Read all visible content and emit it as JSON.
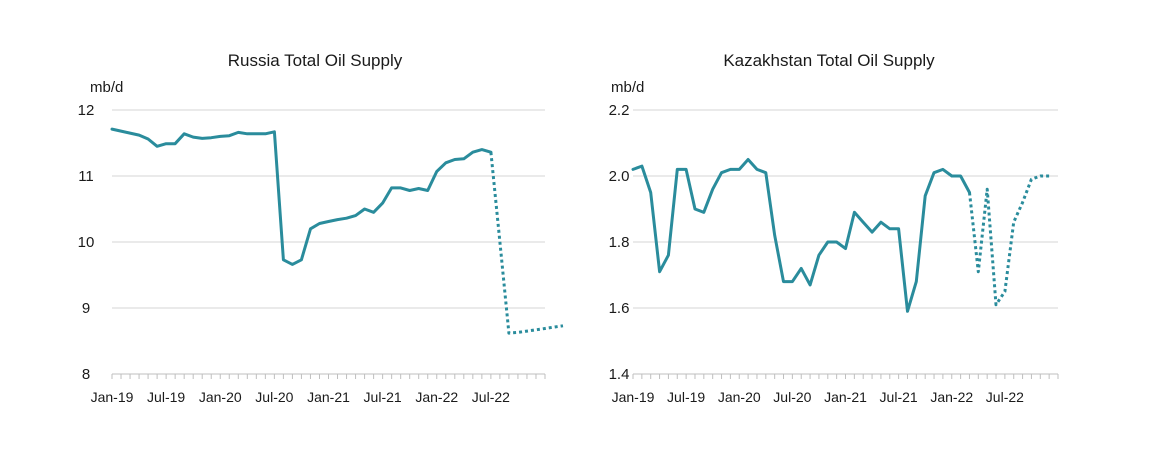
{
  "chart_data": [
    {
      "type": "line",
      "title": "Russia Total Oil Supply",
      "ylabel": "mb/d",
      "ylim": [
        8,
        12
      ],
      "yticks": [
        8,
        9,
        10,
        11,
        12
      ],
      "xtick_labels": [
        "Jan-19",
        "Jul-19",
        "Jan-20",
        "Jul-20",
        "Jan-21",
        "Jul-21",
        "Jan-22",
        "Jul-22"
      ],
      "x_start": "Jan-19",
      "x_end": "Dec-22",
      "grid": "horizontal",
      "color": "#2a8c9c",
      "series": [
        {
          "style": "solid",
          "values": [
            11.71,
            11.68,
            11.65,
            11.62,
            11.56,
            11.45,
            11.49,
            11.49,
            11.64,
            11.59,
            11.57,
            11.58,
            11.6,
            11.61,
            11.66,
            11.64,
            11.64,
            11.64,
            11.67,
            9.73,
            9.66,
            9.73,
            10.2,
            10.28,
            10.31,
            10.34,
            10.36,
            10.4,
            10.5,
            10.45,
            10.59,
            10.82,
            10.82,
            10.78,
            10.81,
            10.78,
            11.07,
            11.2,
            11.25,
            11.26,
            11.36,
            11.4,
            11.36
          ]
        },
        {
          "style": "dotted",
          "start_index": 42,
          "values": [
            11.36,
            10.0,
            8.62,
            8.63,
            8.65,
            8.67,
            8.69,
            8.71,
            8.73
          ]
        }
      ]
    },
    {
      "type": "line",
      "title": "Kazakhstan Total Oil Supply",
      "ylabel": "mb/d",
      "ylim": [
        1.4,
        2.2
      ],
      "yticks": [
        "1.4",
        "1.6",
        "1.8",
        "2.0",
        "2.2"
      ],
      "xtick_labels": [
        "Jan-19",
        "Jul-19",
        "Jan-20",
        "Jul-20",
        "Jan-21",
        "Jul-21",
        "Jan-22",
        "Jul-22"
      ],
      "x_start": "Jan-19",
      "x_end": "Dec-22",
      "grid": "horizontal",
      "color": "#2a8c9c",
      "series": [
        {
          "style": "solid",
          "values": [
            2.02,
            2.03,
            1.95,
            1.71,
            1.76,
            2.02,
            2.02,
            1.9,
            1.89,
            1.96,
            2.01,
            2.02,
            2.02,
            2.05,
            2.02,
            2.01,
            1.82,
            1.68,
            1.68,
            1.72,
            1.67,
            1.76,
            1.8,
            1.8,
            1.78,
            1.89,
            1.86,
            1.83,
            1.86,
            1.84,
            1.84,
            1.59,
            1.68,
            1.94,
            2.01,
            2.02,
            2.0,
            2.0,
            1.95
          ]
        },
        {
          "style": "dotted",
          "start_index": 38,
          "values": [
            1.95,
            1.71,
            1.96,
            1.61,
            1.65,
            1.86,
            1.92,
            1.99,
            2.0,
            2.0
          ]
        }
      ]
    }
  ]
}
